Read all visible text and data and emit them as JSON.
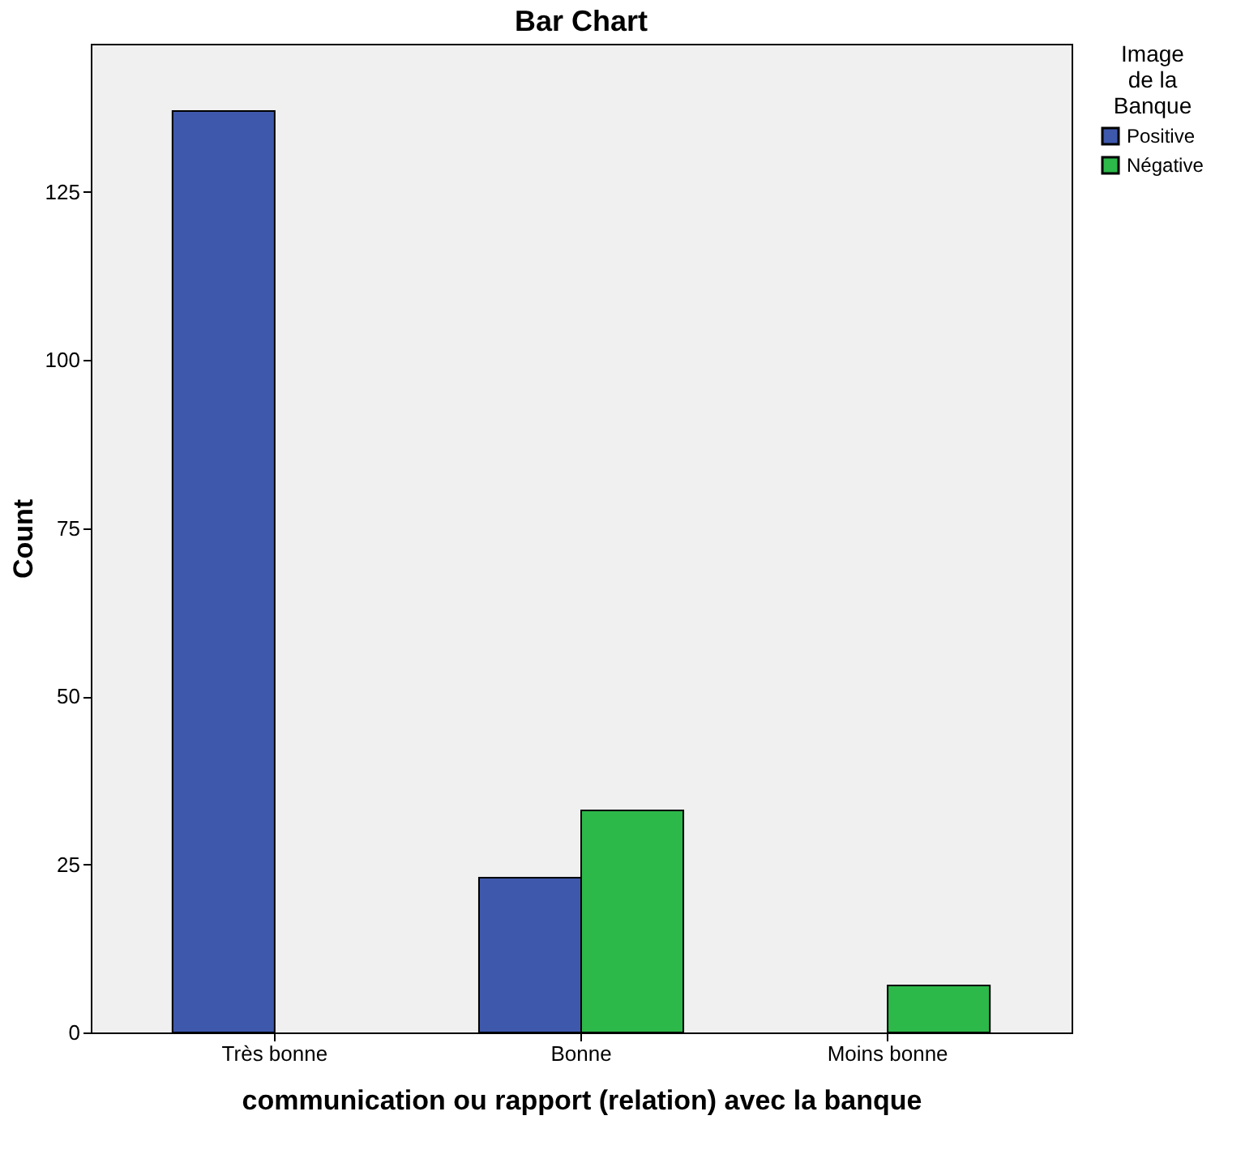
{
  "chart_data": {
    "type": "bar",
    "title": "Bar Chart",
    "xlabel": "communication ou rapport (relation) avec la banque",
    "ylabel": "Count",
    "legend_title": "Image\nde la\nBanque",
    "categories": [
      "Très bonne",
      "Bonne",
      "Moins bonne"
    ],
    "series": [
      {
        "name": "Positive",
        "color": "#3e58ac",
        "values": [
          137,
          23,
          null
        ]
      },
      {
        "name": "Négative",
        "color": "#2db84a",
        "values": [
          null,
          33,
          7
        ]
      }
    ],
    "ylim": [
      0,
      147
    ],
    "yticks": [
      0,
      25,
      50,
      75,
      100,
      125
    ],
    "grid": false,
    "legend": "top right"
  }
}
